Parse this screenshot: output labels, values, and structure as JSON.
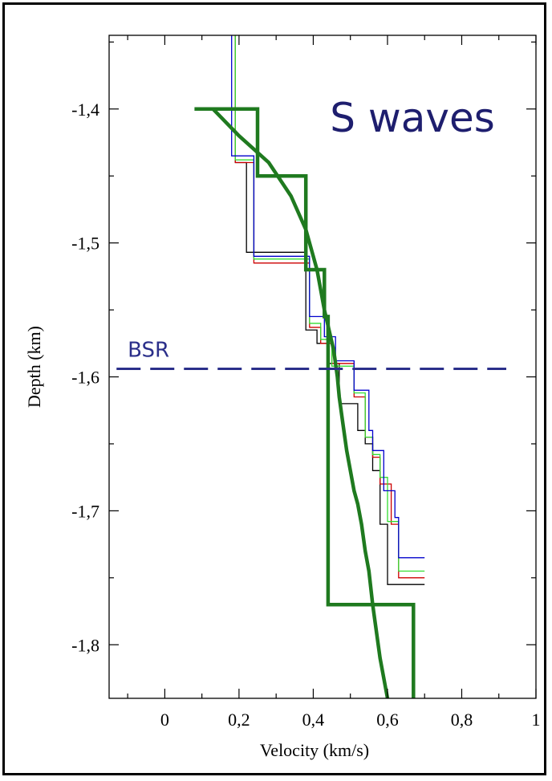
{
  "chart_data": {
    "type": "line",
    "title": "S waves",
    "xlabel": "Velocity (km/s)",
    "ylabel": "Depth (km)",
    "xlim": [
      -0.15,
      1.0
    ],
    "ylim": [
      -1.84,
      -1.345
    ],
    "x_ticks": [
      0,
      0.2,
      0.4,
      0.6,
      0.8,
      1
    ],
    "x_tick_labels": [
      "0",
      "0,2",
      "0,4",
      "0,6",
      "0,8",
      "1"
    ],
    "y_ticks": [
      -1.4,
      -1.5,
      -1.6,
      -1.7,
      -1.8
    ],
    "y_tick_labels": [
      "-1,4",
      "-1,5",
      "-1,6",
      "-1,7",
      "-1,8"
    ],
    "grid": false,
    "colors": {
      "title": "#1e1e6e",
      "bsr": "#2b2f8a",
      "thick": "#1f7a1f"
    },
    "annotations": [
      {
        "text": "BSR",
        "x": -0.1,
        "y": -1.585
      }
    ],
    "reference_lines": [
      {
        "name": "BSR",
        "y": -1.594,
        "x_range": [
          -0.13,
          0.92
        ],
        "style": "dashed"
      }
    ],
    "series": [
      {
        "color": "#000000",
        "width": 1.3,
        "step": true,
        "x": [
          0.19,
          0.19,
          0.22,
          0.22,
          0.38,
          0.38,
          0.41,
          0.41,
          0.44,
          0.44,
          0.47,
          0.47,
          0.52,
          0.52,
          0.54,
          0.54,
          0.56,
          0.56,
          0.58,
          0.58,
          0.6,
          0.6,
          0.7
        ],
        "y": [
          -1.345,
          -1.44,
          -1.44,
          -1.507,
          -1.507,
          -1.565,
          -1.565,
          -1.575,
          -1.575,
          -1.59,
          -1.59,
          -1.62,
          -1.62,
          -1.64,
          -1.64,
          -1.65,
          -1.65,
          -1.67,
          -1.67,
          -1.71,
          -1.71,
          -1.755,
          -1.755
        ]
      },
      {
        "color": "#cc0000",
        "width": 1.3,
        "step": true,
        "x": [
          0.19,
          0.19,
          0.24,
          0.24,
          0.39,
          0.39,
          0.42,
          0.42,
          0.45,
          0.45,
          0.51,
          0.51,
          0.54,
          0.54,
          0.56,
          0.56,
          0.58,
          0.58,
          0.61,
          0.61,
          0.63,
          0.63,
          0.7
        ],
        "y": [
          -1.345,
          -1.44,
          -1.44,
          -1.515,
          -1.515,
          -1.563,
          -1.563,
          -1.575,
          -1.575,
          -1.59,
          -1.59,
          -1.615,
          -1.615,
          -1.645,
          -1.645,
          -1.66,
          -1.66,
          -1.68,
          -1.68,
          -1.71,
          -1.71,
          -1.75,
          -1.75
        ]
      },
      {
        "color": "#33dd33",
        "width": 1.3,
        "step": true,
        "x": [
          0.19,
          0.19,
          0.24,
          0.24,
          0.39,
          0.39,
          0.42,
          0.42,
          0.45,
          0.45,
          0.51,
          0.51,
          0.54,
          0.54,
          0.56,
          0.56,
          0.58,
          0.58,
          0.6,
          0.6,
          0.63,
          0.63,
          0.7
        ],
        "y": [
          -1.345,
          -1.438,
          -1.438,
          -1.512,
          -1.512,
          -1.56,
          -1.56,
          -1.572,
          -1.572,
          -1.592,
          -1.592,
          -1.612,
          -1.612,
          -1.645,
          -1.645,
          -1.658,
          -1.658,
          -1.675,
          -1.675,
          -1.708,
          -1.708,
          -1.745,
          -1.745
        ]
      },
      {
        "color": "#0000cc",
        "width": 1.3,
        "step": true,
        "x": [
          0.18,
          0.18,
          0.24,
          0.24,
          0.39,
          0.39,
          0.43,
          0.43,
          0.46,
          0.46,
          0.51,
          0.51,
          0.55,
          0.55,
          0.56,
          0.56,
          0.59,
          0.59,
          0.62,
          0.62,
          0.63,
          0.63,
          0.7
        ],
        "y": [
          -1.345,
          -1.435,
          -1.435,
          -1.51,
          -1.51,
          -1.555,
          -1.555,
          -1.57,
          -1.57,
          -1.588,
          -1.588,
          -1.61,
          -1.61,
          -1.64,
          -1.64,
          -1.655,
          -1.655,
          -1.685,
          -1.685,
          -1.705,
          -1.705,
          -1.735,
          -1.735
        ]
      },
      {
        "color": "#1f7a1f",
        "width": 4.5,
        "step": true,
        "x": [
          0.08,
          0.15,
          0.15,
          0.25,
          0.25,
          0.34,
          0.34,
          0.38,
          0.38,
          0.39,
          0.39,
          0.43,
          0.43,
          0.44,
          0.44,
          0.55,
          0.55,
          0.67,
          0.67
        ],
        "y": [
          -1.4,
          -1.4,
          -1.4,
          -1.4,
          -1.45,
          -1.45,
          -1.45,
          -1.45,
          -1.52,
          -1.52,
          -1.52,
          -1.52,
          -1.555,
          -1.555,
          -1.77,
          -1.77,
          -1.77,
          -1.77,
          -1.84
        ]
      },
      {
        "color": "#1f7a1f",
        "width": 4.5,
        "step": false,
        "x": [
          0.13,
          0.2,
          0.28,
          0.34,
          0.38,
          0.41,
          0.43,
          0.455,
          0.465,
          0.47,
          0.48,
          0.49,
          0.5,
          0.51,
          0.52,
          0.53,
          0.54,
          0.55,
          0.56,
          0.57,
          0.58,
          0.6
        ],
        "y": [
          -1.4,
          -1.42,
          -1.44,
          -1.465,
          -1.49,
          -1.52,
          -1.55,
          -1.58,
          -1.6,
          -1.615,
          -1.635,
          -1.655,
          -1.67,
          -1.685,
          -1.695,
          -1.71,
          -1.73,
          -1.745,
          -1.77,
          -1.79,
          -1.81,
          -1.84
        ]
      }
    ]
  }
}
